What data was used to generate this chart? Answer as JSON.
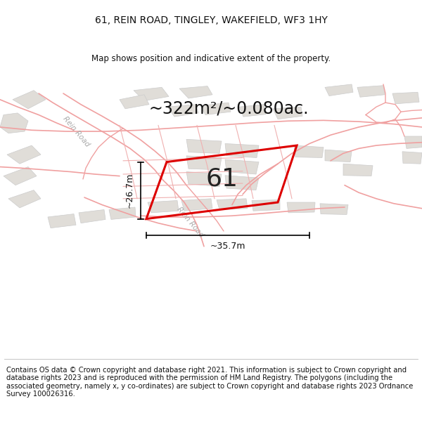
{
  "title": "61, REIN ROAD, TINGLEY, WAKEFIELD, WF3 1HY",
  "subtitle": "Map shows position and indicative extent of the property.",
  "area_text": "~322m²/~0.080ac.",
  "width_label": "~35.7m",
  "height_label": "~26.7m",
  "property_number": "61",
  "footer": "Contains OS data © Crown copyright and database right 2021. This information is subject to Crown copyright and database rights 2023 and is reproduced with the permission of HM Land Registry. The polygons (including the associated geometry, namely x, y co-ordinates) are subject to Crown copyright and database rights 2023 Ordnance Survey 100026316.",
  "map_bg": "#ffffff",
  "road_edge_color": "#f0a0a0",
  "road_fill_color": "#ffffff",
  "property_color": "#dd0000",
  "block_fill": "#e0ddd8",
  "block_edge": "#cccccc",
  "title_fontsize": 10,
  "subtitle_fontsize": 8.5,
  "footer_fontsize": 7.2,
  "area_fontsize": 17,
  "dim_fontsize": 9,
  "number_fontsize": 26,
  "label_color": "#aaaaaa"
}
